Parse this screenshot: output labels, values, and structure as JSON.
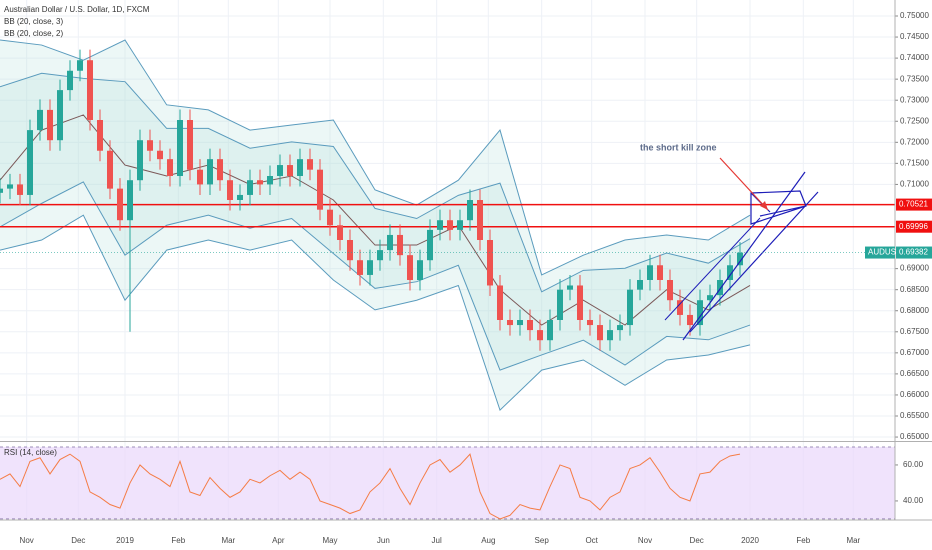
{
  "chart_data": [
    {
      "type": "candlestick",
      "legend": [
        "Australian Dollar / U.S. Dollar, 1D, FXCM",
        "BB (20, close, 3)",
        "BB (20, close, 2)"
      ],
      "annotation": "the short kill zone",
      "xlim": [
        0,
        537
      ],
      "ylim": [
        0.6493,
        0.7538
      ],
      "yticks": [
        {
          "value": 0.65,
          "label": "0.65000"
        },
        {
          "value": 0.655,
          "label": "0.65500"
        },
        {
          "value": 0.66,
          "label": "0.66000"
        },
        {
          "value": 0.665,
          "label": "0.66500"
        },
        {
          "value": 0.67,
          "label": "0.67000"
        },
        {
          "value": 0.675,
          "label": "0.67500"
        },
        {
          "value": 0.68,
          "label": "0.68000"
        },
        {
          "value": 0.685,
          "label": "0.68500"
        },
        {
          "value": 0.69,
          "label": "0.69000"
        },
        {
          "value": 0.71,
          "label": "0.71000"
        },
        {
          "value": 0.715,
          "label": "0.71500"
        },
        {
          "value": 0.72,
          "label": "0.72000"
        },
        {
          "value": 0.725,
          "label": "0.72500"
        },
        {
          "value": 0.73,
          "label": "0.73000"
        },
        {
          "value": 0.735,
          "label": "0.73500"
        },
        {
          "value": 0.74,
          "label": "0.74000"
        },
        {
          "value": 0.745,
          "label": "0.74500"
        },
        {
          "value": 0.75,
          "label": "0.75000"
        }
      ],
      "grid": true,
      "up_color": "#26a69a",
      "down_color": "#ef5350",
      "x": [
        0,
        6,
        12,
        18,
        24,
        30,
        36,
        42,
        48,
        54,
        60,
        66,
        72,
        78,
        84,
        90,
        96,
        102,
        108,
        114,
        120,
        126,
        132,
        138,
        144,
        150,
        156,
        162,
        168,
        174,
        180,
        186,
        192,
        198,
        204,
        210,
        216,
        222,
        228,
        234,
        240,
        246,
        252,
        258,
        264,
        270,
        276,
        282,
        288,
        294,
        300,
        306,
        312,
        318,
        324,
        330,
        336,
        342,
        348,
        354,
        360,
        366,
        372,
        378,
        384,
        390,
        396,
        402,
        408,
        414,
        420,
        426,
        432,
        438,
        444
      ],
      "open": [
        0.708,
        0.709,
        0.71,
        0.7075,
        0.7229,
        0.7277,
        0.7205,
        0.7324,
        0.737,
        0.7395,
        0.7253,
        0.718,
        0.709,
        0.7015,
        0.711,
        0.7205,
        0.718,
        0.716,
        0.712,
        0.7253,
        0.7135,
        0.71,
        0.716,
        0.711,
        0.7063,
        0.7075,
        0.711,
        0.71,
        0.712,
        0.7146,
        0.712,
        0.716,
        0.7135,
        0.704,
        0.7003,
        0.6968,
        0.692,
        0.6885,
        0.692,
        0.6944,
        0.698,
        0.6932,
        0.6873,
        0.692,
        0.6992,
        0.7015,
        0.6992,
        0.7015,
        0.7063,
        0.6968,
        0.686,
        0.6778,
        0.6766,
        0.6778,
        0.6754,
        0.673,
        0.6778,
        0.685,
        0.686,
        0.6778,
        0.6766,
        0.673,
        0.6754,
        0.6766,
        0.685,
        0.6873,
        0.6908,
        0.6873,
        0.6825,
        0.679,
        0.6766,
        0.6825,
        0.6837,
        0.6873,
        0.6908
      ],
      "high": [
        0.7115,
        0.7125,
        0.7125,
        0.7254,
        0.7302,
        0.7302,
        0.7349,
        0.7395,
        0.742,
        0.742,
        0.7278,
        0.7205,
        0.7115,
        0.7135,
        0.723,
        0.723,
        0.7205,
        0.7185,
        0.7278,
        0.7278,
        0.716,
        0.7185,
        0.7185,
        0.7135,
        0.71,
        0.7135,
        0.7135,
        0.7145,
        0.7171,
        0.7171,
        0.7185,
        0.7185,
        0.716,
        0.7065,
        0.7028,
        0.6993,
        0.6945,
        0.6945,
        0.6969,
        0.7005,
        0.7005,
        0.6957,
        0.6945,
        0.7017,
        0.704,
        0.704,
        0.704,
        0.7088,
        0.7088,
        0.6993,
        0.6885,
        0.6803,
        0.6803,
        0.6803,
        0.6779,
        0.6803,
        0.6875,
        0.6885,
        0.6885,
        0.6803,
        0.6791,
        0.6779,
        0.6791,
        0.6875,
        0.6898,
        0.6933,
        0.6933,
        0.6898,
        0.685,
        0.6815,
        0.685,
        0.6862,
        0.6898,
        0.6933,
        0.6963
      ],
      "low": [
        0.7055,
        0.7065,
        0.705,
        0.705,
        0.7204,
        0.718,
        0.718,
        0.7299,
        0.7345,
        0.7228,
        0.7155,
        0.7065,
        0.699,
        0.675,
        0.7085,
        0.7155,
        0.7135,
        0.7095,
        0.7095,
        0.711,
        0.7075,
        0.7075,
        0.7085,
        0.7038,
        0.7038,
        0.705,
        0.7075,
        0.7075,
        0.7095,
        0.7095,
        0.7095,
        0.711,
        0.7015,
        0.6978,
        0.6943,
        0.6895,
        0.686,
        0.686,
        0.6895,
        0.6919,
        0.6907,
        0.6848,
        0.6848,
        0.6895,
        0.6967,
        0.6967,
        0.6967,
        0.699,
        0.6943,
        0.6835,
        0.6753,
        0.6741,
        0.6741,
        0.6729,
        0.6705,
        0.6705,
        0.6753,
        0.6825,
        0.6753,
        0.6741,
        0.6705,
        0.6705,
        0.6729,
        0.6741,
        0.6825,
        0.6848,
        0.6848,
        0.68,
        0.6765,
        0.6741,
        0.6741,
        0.68,
        0.6812,
        0.6848,
        0.6883
      ],
      "close": [
        0.709,
        0.71,
        0.7075,
        0.7229,
        0.7277,
        0.7205,
        0.7324,
        0.737,
        0.7395,
        0.7253,
        0.718,
        0.709,
        0.7015,
        0.711,
        0.7205,
        0.718,
        0.716,
        0.712,
        0.7253,
        0.7135,
        0.71,
        0.716,
        0.711,
        0.7063,
        0.7075,
        0.711,
        0.71,
        0.712,
        0.7146,
        0.712,
        0.716,
        0.7135,
        0.704,
        0.7003,
        0.6968,
        0.692,
        0.6885,
        0.692,
        0.6944,
        0.698,
        0.6932,
        0.6873,
        0.692,
        0.6992,
        0.7015,
        0.6992,
        0.7015,
        0.7063,
        0.6968,
        0.686,
        0.6778,
        0.6766,
        0.6778,
        0.6754,
        0.673,
        0.6778,
        0.685,
        0.686,
        0.6778,
        0.6766,
        0.673,
        0.6754,
        0.6766,
        0.685,
        0.6873,
        0.6908,
        0.6873,
        0.6825,
        0.679,
        0.6766,
        0.6825,
        0.6837,
        0.6873,
        0.6908,
        0.6938
      ],
      "bands": {
        "x": [
          0,
          25,
          50,
          75,
          100,
          125,
          150,
          175,
          200,
          225,
          250,
          275,
          300,
          325,
          350,
          375,
          400,
          425,
          450
        ],
        "fill": "#b2dfdb",
        "series": [
          {
            "color": "#5a9bbd",
            "values": [
              0.7443,
              0.7431,
              0.7395,
              0.7443,
              0.7289,
              0.7277,
              0.7229,
              0.7241,
              0.7253,
              0.7087,
              0.7051,
              0.711,
              0.7229,
              0.6885,
              0.6932,
              0.6968,
              0.698,
              0.6968,
              0.7027
            ]
          },
          {
            "color": "#5a9bbd",
            "values": [
              0.6944,
              0.6968,
              0.7027,
              0.6825,
              0.6944,
              0.6968,
              0.6944,
              0.6968,
              0.6873,
              0.6802,
              0.6825,
              0.686,
              0.6564,
              0.6659,
              0.6683,
              0.6623,
              0.6683,
              0.6695,
              0.6719
            ]
          },
          {
            "color": "#5a9bbd",
            "values": [
              0.7332,
              0.7364,
              0.7352,
              0.7344,
              0.7233,
              0.7233,
              0.7186,
              0.7201,
              0.719,
              0.7043,
              0.7019,
              0.7074,
              0.7103,
              0.6845,
              0.6896,
              0.6901,
              0.6937,
              0.6913,
              0.6971
            ]
          },
          {
            "color": "#5a9bbd",
            "values": [
              0.6999,
              0.7055,
              0.7106,
              0.6932,
              0.7003,
              0.7027,
              0.6996,
              0.7019,
              0.6936,
              0.6853,
              0.6869,
              0.6908,
              0.6659,
              0.6695,
              0.673,
              0.6671,
              0.6739,
              0.6731,
              0.6766
            ]
          },
          {
            "color": "#7b5858",
            "values": [
              0.711,
              0.7229,
              0.7265,
              0.7146,
              0.712,
              0.7146,
              0.71,
              0.712,
              0.7063,
              0.6956,
              0.6956,
              0.7003,
              0.685,
              0.6766,
              0.6825,
              0.6766,
              0.685,
              0.6802,
              0.686
            ]
          }
        ]
      },
      "levels": [
        {
          "value": 0.70521,
          "label": "0.70521",
          "color": "#f01010"
        },
        {
          "value": 0.69996,
          "label": "0.69996",
          "color": "#f01010"
        }
      ],
      "last_price": {
        "name": "AUDUSD",
        "value": 0.69382,
        "label": "0.69382",
        "color": "#26a69a"
      }
    },
    {
      "type": "line",
      "title": "RSI (14, close)",
      "color": "#f57c45",
      "band_range": [
        30,
        70
      ],
      "band_color": "#ead7fb",
      "ylim": [
        29.4,
        72.2
      ],
      "yticks": [
        {
          "value": 40,
          "label": "40.00"
        },
        {
          "value": 60,
          "label": "60.00"
        }
      ],
      "xlim": [
        0,
        537
      ],
      "xticks": [
        {
          "value": 16,
          "label": "Nov"
        },
        {
          "value": 47,
          "label": "Dec"
        },
        {
          "value": 75,
          "label": "2019"
        },
        {
          "value": 107,
          "label": "Feb"
        },
        {
          "value": 137,
          "label": "Mar"
        },
        {
          "value": 167,
          "label": "Apr"
        },
        {
          "value": 198,
          "label": "May"
        },
        {
          "value": 230,
          "label": "Jun"
        },
        {
          "value": 262,
          "label": "Jul"
        },
        {
          "value": 293,
          "label": "Aug"
        },
        {
          "value": 325,
          "label": "Sep"
        },
        {
          "value": 355,
          "label": "Oct"
        },
        {
          "value": 387,
          "label": "Nov"
        },
        {
          "value": 418,
          "label": "Dec"
        },
        {
          "value": 450,
          "label": "2020"
        },
        {
          "value": 482,
          "label": "Feb"
        },
        {
          "value": 512,
          "label": "Mar"
        }
      ],
      "values": [
        52,
        55,
        48,
        62,
        64,
        55,
        63,
        66,
        62,
        45,
        42,
        38,
        36,
        50,
        60,
        55,
        52,
        48,
        62,
        45,
        43,
        53,
        47,
        42,
        45,
        52,
        50,
        54,
        57,
        52,
        56,
        52,
        40,
        38,
        36,
        33,
        35,
        45,
        50,
        58,
        47,
        38,
        50,
        60,
        63,
        56,
        60,
        66,
        45,
        33,
        30,
        32,
        38,
        36,
        35,
        48,
        60,
        58,
        42,
        40,
        35,
        42,
        45,
        58,
        60,
        64,
        56,
        47,
        42,
        40,
        55,
        56,
        62,
        65,
        66
      ]
    }
  ]
}
